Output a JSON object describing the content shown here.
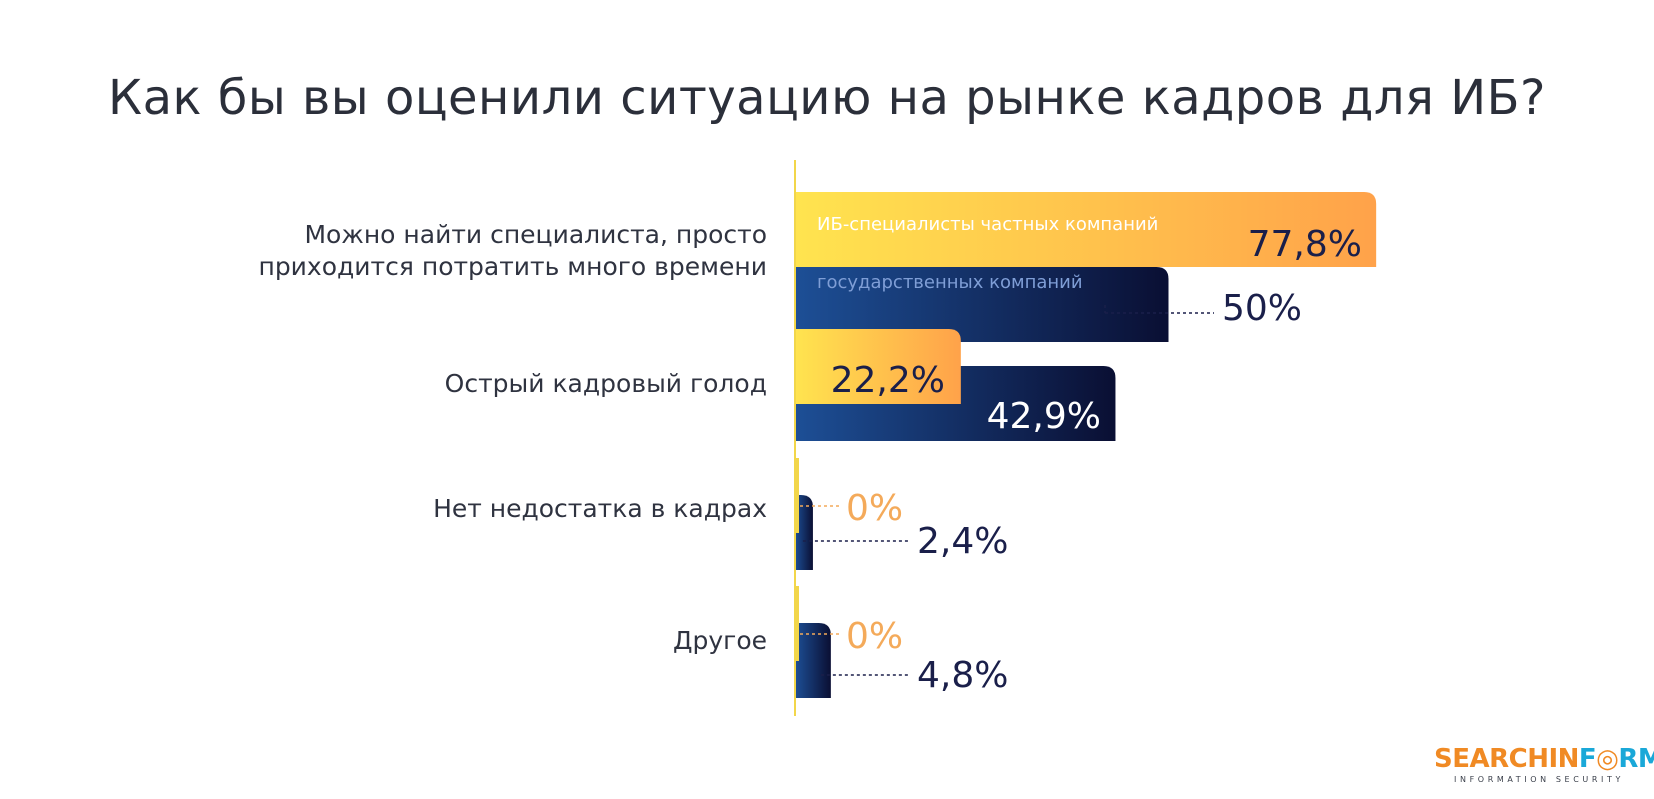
{
  "title": "Как бы вы оценили ситуацию на рынке кадров для ИБ?",
  "colors": {
    "private_start": "#ffe44f",
    "private_end": "#ffa24a",
    "public_start": "#1d4f96",
    "public_end": "#0a0f33",
    "label_dark": "#1a1f4a",
    "label_orange": "#f4aa5a",
    "axis": "#f2d64a"
  },
  "chart_data": {
    "type": "bar",
    "orientation": "horizontal",
    "categories": [
      [
        "Можно найти специалиста, просто",
        "приходится потратить много времени"
      ],
      [
        "Острый кадровый голод"
      ],
      [
        "Нет недостатка в кадрах"
      ],
      [
        "Другое"
      ]
    ],
    "series": [
      {
        "name": "ИБ-специалисты частных компаний",
        "values": [
          77.8,
          22.2,
          0,
          0
        ],
        "labels": [
          "77,8%",
          "22,2%",
          "0%",
          "0%"
        ]
      },
      {
        "name": "государственных компаний",
        "values": [
          50,
          42.9,
          2.4,
          4.8
        ],
        "labels": [
          "50%",
          "42,9%",
          "2,4%",
          "4,8%"
        ]
      }
    ],
    "xlim": [
      0,
      100
    ],
    "legend": "inside-first-bars",
    "grid": false
  },
  "logo": {
    "part1": "SEARCHIN",
    "part2": "F",
    "part3": "RM",
    "subtitle": "INFORMATION SECURITY"
  }
}
